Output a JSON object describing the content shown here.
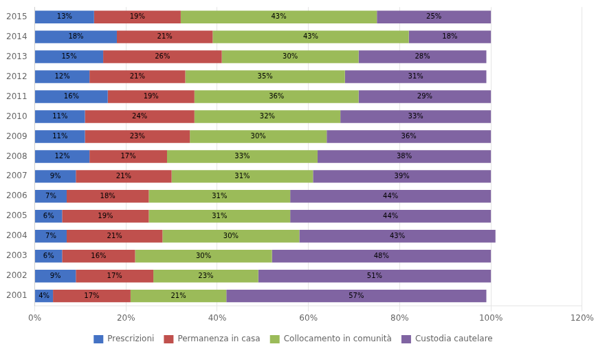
{
  "chart_data": {
    "type": "bar",
    "orientation": "horizontal",
    "stacked": true,
    "data_labels": true,
    "grid": true,
    "legend": "bottom",
    "categories": [
      "2015",
      "2014",
      "2013",
      "2012",
      "2011",
      "2010",
      "2009",
      "2008",
      "2007",
      "2006",
      "2005",
      "2004",
      "2003",
      "2002",
      "2001"
    ],
    "series": [
      {
        "name": "Prescrizioni",
        "color": "#4472C4",
        "values": [
          13,
          18,
          15,
          12,
          16,
          11,
          11,
          12,
          9,
          7,
          6,
          7,
          6,
          9,
          4
        ],
        "value_labels": [
          "13%",
          "18%",
          "15%",
          "12%",
          "16%",
          "11%",
          "11%",
          "12%",
          "9%",
          "7%",
          "6%",
          "7%",
          "6%",
          "9%",
          "4%"
        ]
      },
      {
        "name": "Permanenza in casa",
        "color": "#C0504D",
        "values": [
          19,
          21,
          26,
          21,
          19,
          24,
          23,
          17,
          21,
          18,
          19,
          21,
          16,
          17,
          17
        ],
        "value_labels": [
          "19%",
          "21%",
          "26%",
          "21%",
          "19%",
          "24%",
          "23%",
          "17%",
          "21%",
          "18%",
          "19%",
          "21%",
          "16%",
          "17%",
          "17%"
        ]
      },
      {
        "name": "Collocamento in comunità",
        "color": "#9BBB59",
        "values": [
          43,
          43,
          30,
          35,
          36,
          32,
          30,
          33,
          31,
          31,
          31,
          30,
          30,
          23,
          21
        ],
        "value_labels": [
          "43%",
          "43%",
          "30%",
          "35%",
          "36%",
          "32%",
          "30%",
          "33%",
          "31%",
          "31%",
          "31%",
          "30%",
          "30%",
          "23%",
          "21%"
        ]
      },
      {
        "name": "Custodia cautelare",
        "color": "#8064A2",
        "values": [
          25,
          18,
          28,
          31,
          29,
          33,
          36,
          38,
          39,
          44,
          44,
          43,
          48,
          51,
          57
        ],
        "value_labels": [
          "25%",
          "18%",
          "28%",
          "31%",
          "29%",
          "33%",
          "36%",
          "38%",
          "39%",
          "44%",
          "44%",
          "43%",
          "48%",
          "51%",
          "57%"
        ]
      }
    ],
    "xlim": [
      0,
      120
    ],
    "xticks": [
      {
        "value": 0,
        "label": "0%"
      },
      {
        "value": 20,
        "label": "20%"
      },
      {
        "value": 40,
        "label": "40%"
      },
      {
        "value": 60,
        "label": "60%"
      },
      {
        "value": 80,
        "label": "80%"
      },
      {
        "value": 100,
        "label": "100%"
      },
      {
        "value": 120,
        "label": "120%"
      }
    ]
  }
}
